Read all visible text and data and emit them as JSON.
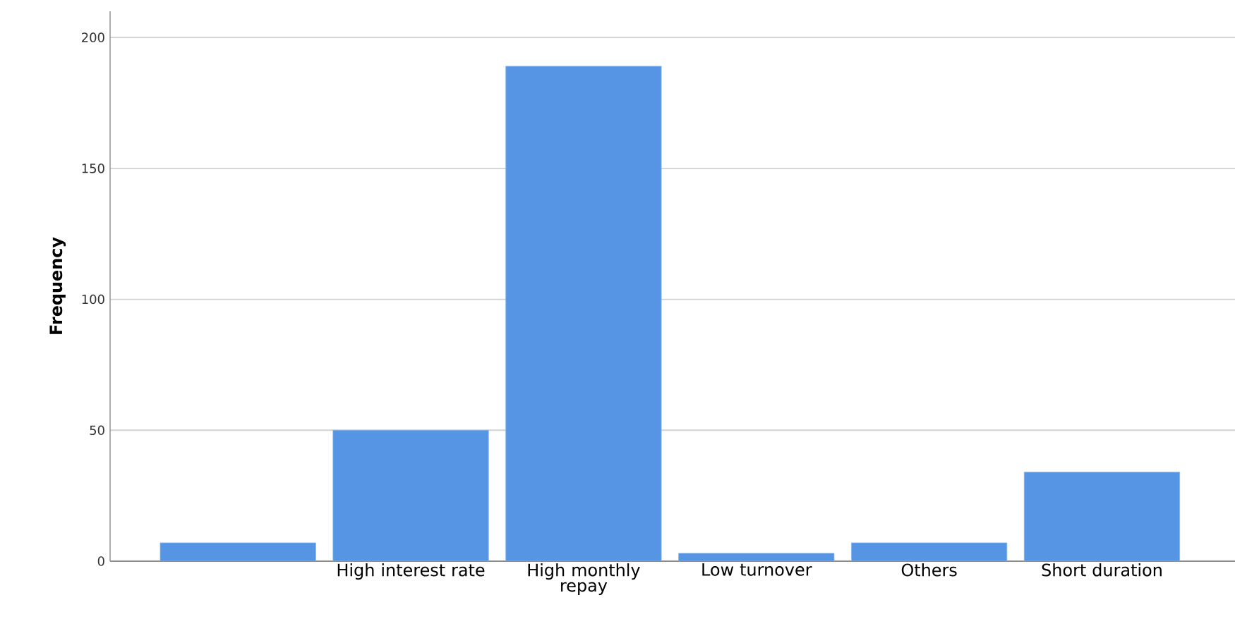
{
  "chart_data": {
    "type": "bar",
    "ylabel": "Frequency",
    "categories": [
      null,
      "High interest rate",
      "High monthly repay",
      "Low turnover",
      "Others",
      "Short duration"
    ],
    "values": [
      7,
      50,
      189,
      3,
      7,
      34
    ],
    "color": "#5595e3",
    "ylim": [
      0,
      210
    ],
    "yticks": [
      0,
      50,
      100,
      150,
      200
    ],
    "grid": "y"
  }
}
